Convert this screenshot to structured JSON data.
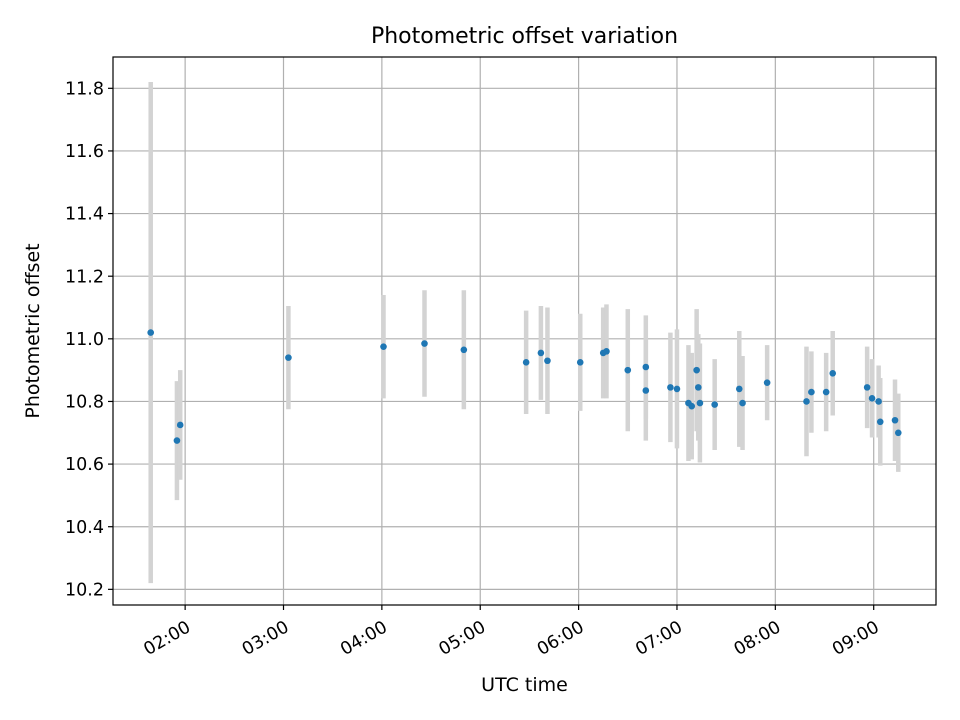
{
  "chart_data": {
    "type": "scatter",
    "title": "Photometric offset variation",
    "xlabel": "UTC time",
    "ylabel": "Photometric offset",
    "x_unit": "UTC hour",
    "xlim": [
      "01:16",
      "09:38"
    ],
    "ylim": [
      10.15,
      11.9
    ],
    "x_ticks": [
      "02:00",
      "03:00",
      "04:00",
      "05:00",
      "06:00",
      "07:00",
      "08:00",
      "09:00"
    ],
    "y_ticks": [
      "10.2",
      "10.4",
      "10.6",
      "10.8",
      "11.0",
      "11.2",
      "11.4",
      "11.6",
      "11.8"
    ],
    "grid": true,
    "colors": {
      "point": "#1f77b4",
      "errorbar": "#d3d3d3",
      "grid": "#b0b0b0"
    },
    "points": [
      {
        "t": "01:39",
        "y": 11.02,
        "err": 0.8
      },
      {
        "t": "01:55",
        "y": 10.675,
        "err": 0.19
      },
      {
        "t": "01:57",
        "y": 10.725,
        "err": 0.175
      },
      {
        "t": "03:03",
        "y": 10.94,
        "err": 0.165
      },
      {
        "t": "04:01",
        "y": 10.975,
        "err": 0.165
      },
      {
        "t": "04:26",
        "y": 10.985,
        "err": 0.17
      },
      {
        "t": "04:50",
        "y": 10.965,
        "err": 0.19
      },
      {
        "t": "05:28",
        "y": 10.925,
        "err": 0.165
      },
      {
        "t": "05:37",
        "y": 10.955,
        "err": 0.15
      },
      {
        "t": "05:41",
        "y": 10.93,
        "err": 0.17
      },
      {
        "t": "06:01",
        "y": 10.925,
        "err": 0.155
      },
      {
        "t": "06:15",
        "y": 10.955,
        "err": 0.145
      },
      {
        "t": "06:17",
        "y": 10.96,
        "err": 0.15
      },
      {
        "t": "06:30",
        "y": 10.9,
        "err": 0.195
      },
      {
        "t": "06:41",
        "y": 10.835,
        "err": 0.16
      },
      {
        "t": "06:41",
        "y": 10.91,
        "err": 0.165
      },
      {
        "t": "06:56",
        "y": 10.845,
        "err": 0.175
      },
      {
        "t": "07:00",
        "y": 10.84,
        "err": 0.19
      },
      {
        "t": "07:07",
        "y": 10.795,
        "err": 0.185
      },
      {
        "t": "07:09",
        "y": 10.785,
        "err": 0.17
      },
      {
        "t": "07:12",
        "y": 10.9,
        "err": 0.195
      },
      {
        "t": "07:13",
        "y": 10.845,
        "err": 0.17
      },
      {
        "t": "07:14",
        "y": 10.795,
        "err": 0.19
      },
      {
        "t": "07:23",
        "y": 10.79,
        "err": 0.145
      },
      {
        "t": "07:38",
        "y": 10.84,
        "err": 0.185
      },
      {
        "t": "07:40",
        "y": 10.795,
        "err": 0.15
      },
      {
        "t": "07:55",
        "y": 10.86,
        "err": 0.12
      },
      {
        "t": "08:19",
        "y": 10.8,
        "err": 0.175
      },
      {
        "t": "08:22",
        "y": 10.83,
        "err": 0.13
      },
      {
        "t": "08:31",
        "y": 10.83,
        "err": 0.125
      },
      {
        "t": "08:35",
        "y": 10.89,
        "err": 0.135
      },
      {
        "t": "08:56",
        "y": 10.845,
        "err": 0.13
      },
      {
        "t": "08:59",
        "y": 10.81,
        "err": 0.125
      },
      {
        "t": "09:03",
        "y": 10.8,
        "err": 0.115
      },
      {
        "t": "09:04",
        "y": 10.735,
        "err": 0.14
      },
      {
        "t": "09:13",
        "y": 10.74,
        "err": 0.13
      },
      {
        "t": "09:15",
        "y": 10.7,
        "err": 0.125
      }
    ]
  }
}
